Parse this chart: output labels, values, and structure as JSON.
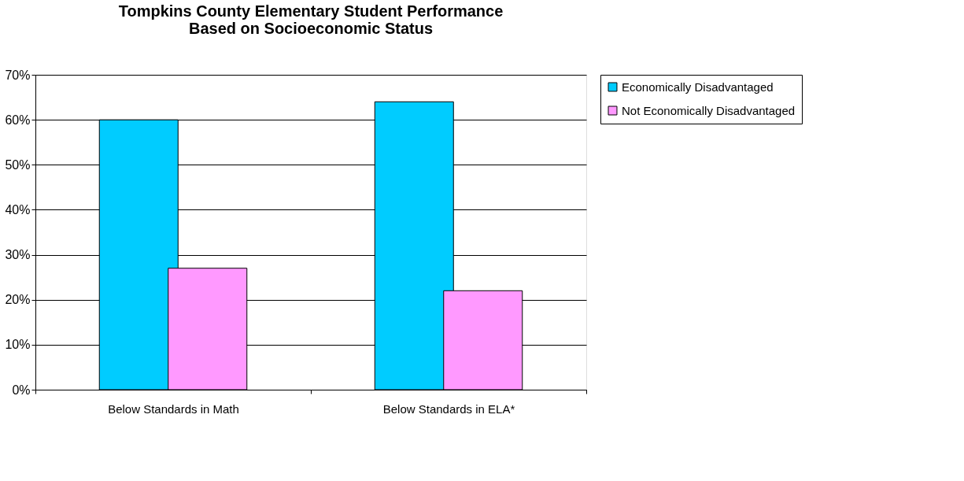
{
  "chart_data": {
    "type": "bar",
    "title": [
      "Tompkins County Elementary Student Performance",
      "Based on Socioeconomic Status"
    ],
    "categories": [
      "Below Standards in Math",
      "Below Standards in ELA*"
    ],
    "series": [
      {
        "name": "Economically Disadvantaged",
        "color": "#00ccff",
        "values": [
          60,
          64
        ]
      },
      {
        "name": "Not Economically Disadvantaged",
        "color": "#ff99ff",
        "values": [
          27,
          22
        ]
      }
    ],
    "ylim": [
      0,
      70
    ],
    "yticks": [
      {
        "value": 0,
        "label": "0%"
      },
      {
        "value": 10,
        "label": "10%"
      },
      {
        "value": 20,
        "label": "20%"
      },
      {
        "value": 30,
        "label": "30%"
      },
      {
        "value": 40,
        "label": "40%"
      },
      {
        "value": 50,
        "label": "50%"
      },
      {
        "value": 60,
        "label": "60%"
      },
      {
        "value": 70,
        "label": "70%"
      }
    ],
    "grid": "y",
    "legend": "right"
  }
}
